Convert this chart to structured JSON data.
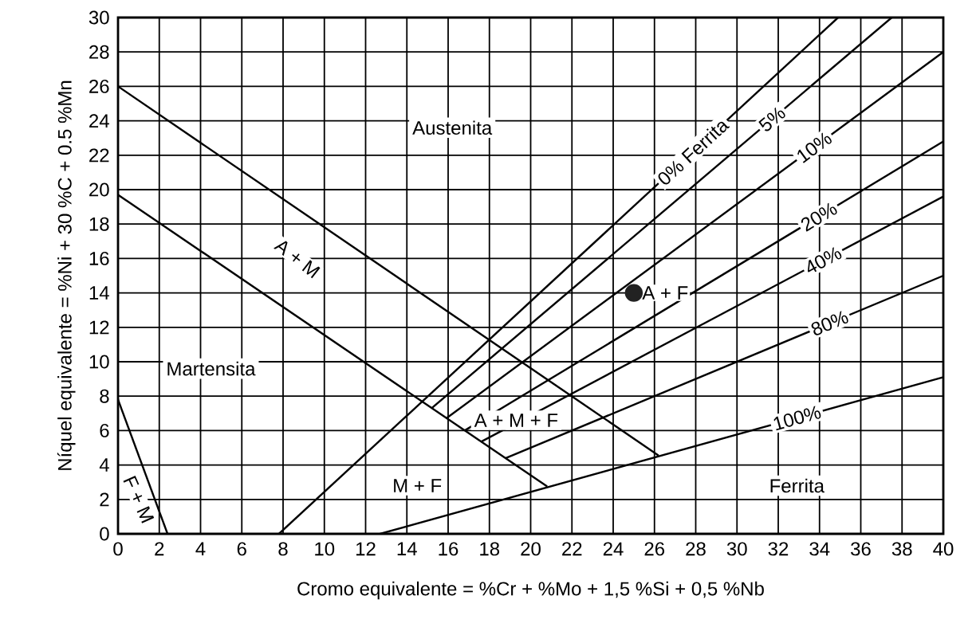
{
  "chart_data": {
    "type": "line",
    "xlabel": "Cromo equivalente = %Cr + %Mo + 1,5 %Si  + 0,5 %Nb",
    "ylabel": "Níquel equivalente = %Ni + 30 %C + 0.5 %Mn",
    "xlim": [
      0,
      40
    ],
    "ylim": [
      0,
      30
    ],
    "xticks": [
      0,
      2,
      4,
      6,
      8,
      10,
      12,
      14,
      16,
      18,
      20,
      22,
      24,
      26,
      28,
      30,
      32,
      34,
      36,
      38,
      40
    ],
    "yticks": [
      0,
      2,
      4,
      6,
      8,
      10,
      12,
      14,
      16,
      18,
      20,
      22,
      24,
      26,
      28,
      30
    ],
    "grid": true,
    "line_style": "solid",
    "series": [
      {
        "color": "#000000",
        "x": [
          0,
          26.2
        ],
        "values": [
          26,
          4.55
        ]
      },
      {
        "color": "#000000",
        "x": [
          0,
          20.8
        ],
        "values": [
          19.7,
          2.75
        ]
      },
      {
        "color": "#000000",
        "x": [
          0,
          2.4
        ],
        "values": [
          7.8,
          0
        ]
      },
      {
        "name": "0% Ferrita",
        "color": "#000000",
        "x": [
          7.8,
          34.9
        ],
        "values": [
          0,
          30
        ]
      },
      {
        "name": "5%",
        "color": "#000000",
        "x": [
          15.2,
          37.5
        ],
        "values": [
          7.3,
          30
        ]
      },
      {
        "name": "10%",
        "color": "#000000",
        "x": [
          15.9,
          40
        ],
        "values": [
          6.7,
          28
        ]
      },
      {
        "name": "20%",
        "color": "#000000",
        "x": [
          16.8,
          40
        ],
        "values": [
          6,
          22.8
        ]
      },
      {
        "name": "40%",
        "color": "#000000",
        "x": [
          17.6,
          40
        ],
        "values": [
          5.35,
          19.6
        ]
      },
      {
        "name": "80%",
        "color": "#000000",
        "x": [
          18.8,
          40
        ],
        "values": [
          4.4,
          15
        ]
      },
      {
        "name": "100%",
        "color": "#000000",
        "x": [
          12.7,
          40
        ],
        "values": [
          0,
          9.1
        ]
      },
      {
        "type": "scatter",
        "color": "#222222",
        "x": [
          25
        ],
        "values": [
          14
        ]
      }
    ],
    "annotations": [
      "Austenita",
      "A + M",
      "Martensita",
      "A + M + F",
      "M + F",
      "F + M",
      "Ferrita",
      {
        "text": "A + F",
        "x": 25,
        "y": 14
      }
    ]
  }
}
